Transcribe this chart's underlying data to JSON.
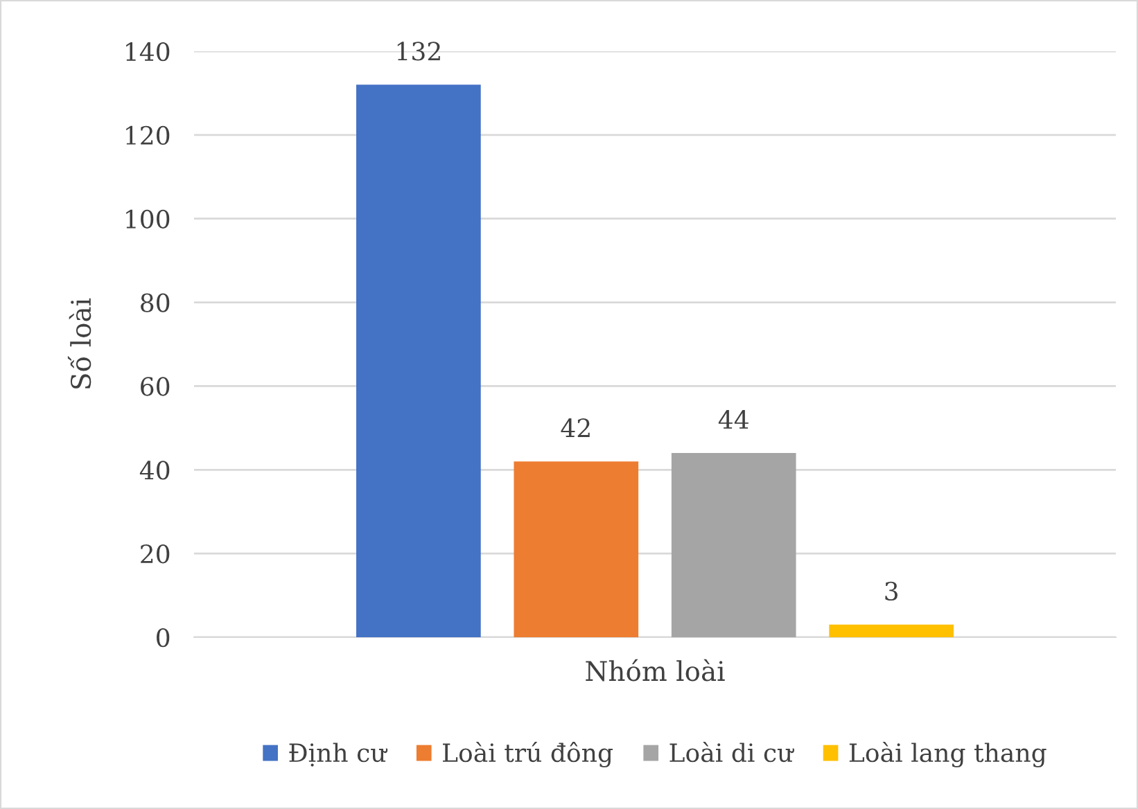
{
  "chart_data": {
    "type": "bar",
    "ylabel": "Số loài",
    "xlabel": "Nhóm loài",
    "categories": [
      null
    ],
    "series": [
      {
        "name": "Định cư",
        "color": "#4472c4",
        "values": [
          132
        ]
      },
      {
        "name": "Loài trú đông",
        "color": "#ed7d31",
        "values": [
          42
        ]
      },
      {
        "name": "Loài di cư",
        "color": "#a5a5a5",
        "values": [
          44
        ]
      },
      {
        "name": "Loài lang thang",
        "color": "#ffc000",
        "values": [
          3
        ]
      }
    ],
    "ylim": [
      0,
      140
    ],
    "yticks": [
      0,
      20,
      40,
      60,
      80,
      100,
      120,
      140
    ],
    "grid": "y",
    "legend": "bottom",
    "data_labels": true
  }
}
